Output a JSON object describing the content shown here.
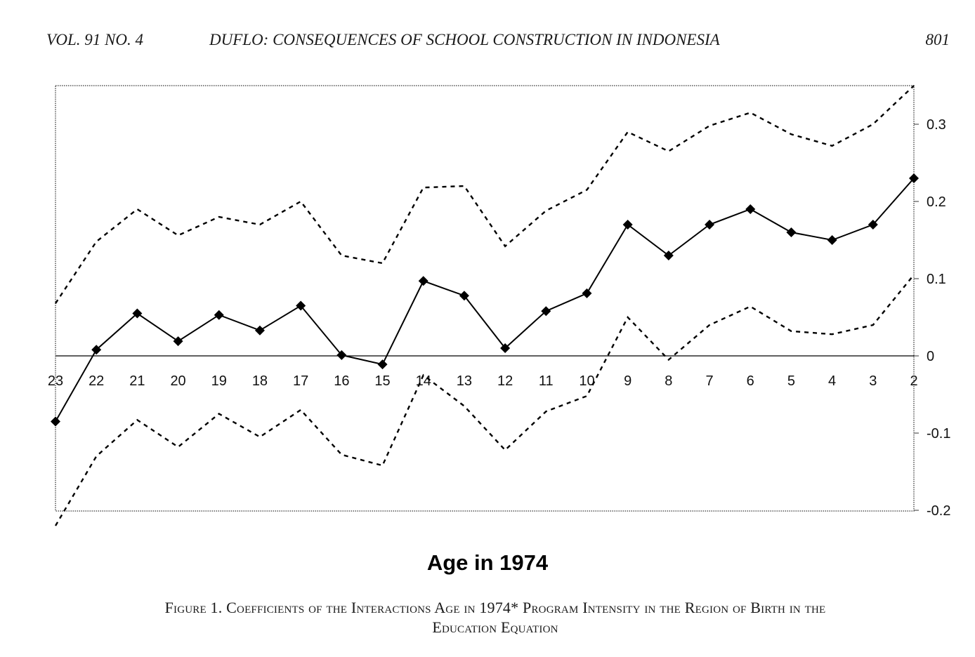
{
  "header": {
    "left": "VOL. 91 NO. 4",
    "center": "DUFLO: CONSEQUENCES OF SCHOOL CONSTRUCTION IN INDONESIA",
    "right": "801"
  },
  "caption": {
    "line1": "Figure 1. Coefficients of the Interactions Age in 1974* Program Intensity in the Region of Birth in the",
    "line2": "Education Equation"
  },
  "chart_data": {
    "type": "line",
    "xlabel": "Age in 1974",
    "ylabel": "",
    "title": "",
    "categories": [
      "23",
      "22",
      "21",
      "20",
      "19",
      "18",
      "17",
      "16",
      "15",
      "14",
      "13",
      "12",
      "11",
      "10",
      "9",
      "8",
      "7",
      "6",
      "5",
      "4",
      "3",
      "2"
    ],
    "ylim": [
      -0.2,
      0.35
    ],
    "yticks": [
      "0.3",
      "0.2",
      "0.1",
      "0",
      "-0.1",
      "-0.2"
    ],
    "yaxis_position": "right",
    "grid": false,
    "series": [
      {
        "style": "solid-diamond",
        "values": [
          -0.085,
          0.008,
          0.055,
          0.019,
          0.053,
          0.033,
          0.065,
          0.001,
          -0.011,
          0.097,
          0.078,
          0.01,
          0.058,
          0.081,
          0.17,
          0.13,
          0.17,
          0.19,
          0.16,
          0.15,
          0.17,
          0.23
        ]
      },
      {
        "style": "dashed",
        "values": [
          0.068,
          0.148,
          0.19,
          0.156,
          0.18,
          0.17,
          0.2,
          0.13,
          0.12,
          0.218,
          0.22,
          0.142,
          0.188,
          0.215,
          0.29,
          0.265,
          0.298,
          0.315,
          0.287,
          0.272,
          0.3,
          0.35
        ]
      },
      {
        "style": "dashed",
        "values": [
          -0.22,
          -0.13,
          -0.083,
          -0.118,
          -0.075,
          -0.105,
          -0.07,
          -0.128,
          -0.142,
          -0.025,
          -0.065,
          -0.122,
          -0.072,
          -0.052,
          0.05,
          -0.005,
          0.04,
          0.064,
          0.032,
          0.028,
          0.04,
          0.105
        ]
      }
    ]
  }
}
